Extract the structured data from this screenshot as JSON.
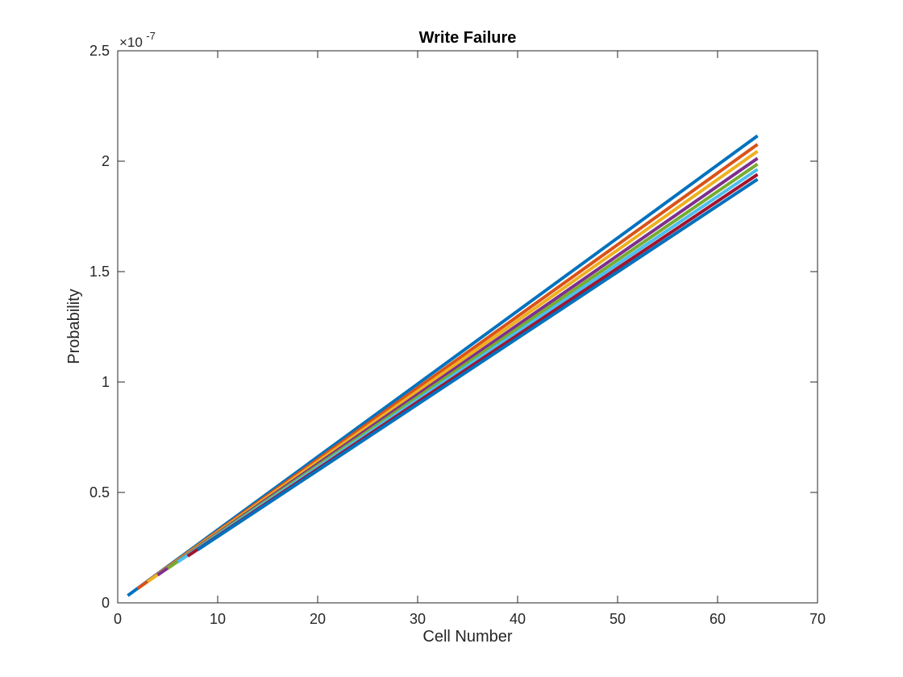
{
  "chart_data": {
    "type": "line",
    "title": "Write Failure",
    "xlabel": "Cell Number",
    "ylabel": "Probability",
    "xlim": [
      0,
      70
    ],
    "ylim": [
      0,
      2.5e-07
    ],
    "x_ticks": [
      0,
      10,
      20,
      30,
      40,
      50,
      60,
      70
    ],
    "x_tick_labels": [
      "0",
      "10",
      "20",
      "30",
      "40",
      "50",
      "60",
      "70"
    ],
    "y_ticks": [
      0,
      5e-08,
      1e-07,
      1.5e-07,
      2e-07,
      2.5e-07
    ],
    "y_tick_labels": [
      "0",
      "0.5",
      "1",
      "1.5",
      "2",
      "2.5"
    ],
    "y_exponent_base": "×10",
    "y_exponent_power": "-7",
    "grid": false,
    "legend": "none",
    "series": [
      {
        "color": "#0072BD",
        "x": [
          1,
          64
        ],
        "y": [
          3.3e-09,
          2.115e-07
        ]
      },
      {
        "color": "#D95319",
        "x": [
          2,
          64
        ],
        "y": [
          6.5e-09,
          2.076e-07
        ]
      },
      {
        "color": "#EDB120",
        "x": [
          3,
          64
        ],
        "y": [
          9.6e-09,
          2.045e-07
        ]
      },
      {
        "color": "#7E2F8E",
        "x": [
          4,
          64
        ],
        "y": [
          1.26e-08,
          2.013e-07
        ]
      },
      {
        "color": "#77AC30",
        "x": [
          5,
          64
        ],
        "y": [
          1.56e-08,
          1.987e-07
        ]
      },
      {
        "color": "#4DBEEE",
        "x": [
          6,
          64
        ],
        "y": [
          1.85e-08,
          1.963e-07
        ]
      },
      {
        "color": "#A2142F",
        "x": [
          7,
          64
        ],
        "y": [
          2.12e-08,
          1.94e-07
        ]
      },
      {
        "color": "#0072BD",
        "x": [
          8,
          64
        ],
        "y": [
          2.4e-08,
          1.918e-07
        ]
      }
    ]
  }
}
